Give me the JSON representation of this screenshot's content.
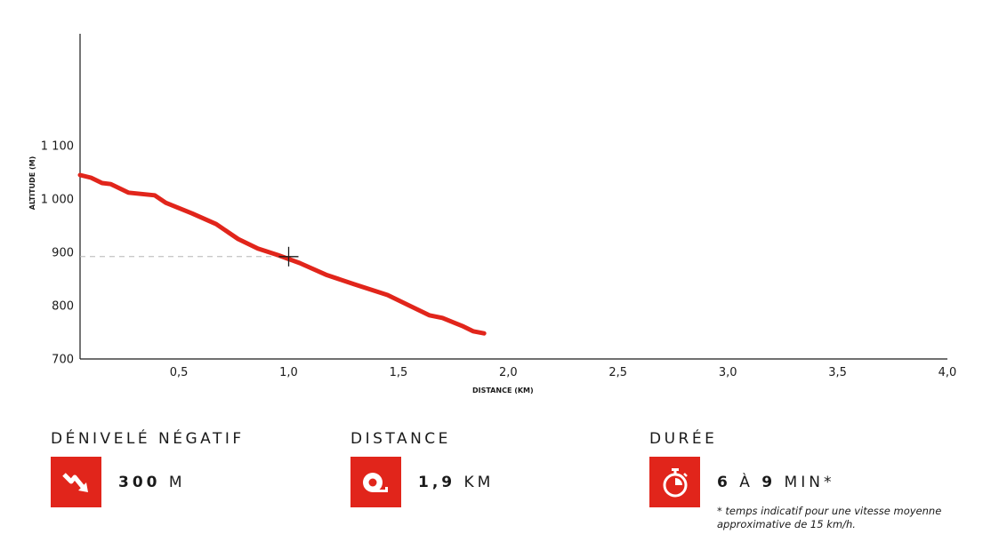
{
  "chart_data": {
    "type": "line",
    "xlabel": "DISTANCE (KM)",
    "ylabel": "ALTITUDE (M)",
    "xlim": [
      0.05,
      4.0
    ],
    "ylim": [
      700,
      1200
    ],
    "x_ticks": [
      0.5,
      1.0,
      1.5,
      2.0,
      2.5,
      3.0,
      3.5,
      4.0
    ],
    "x_tick_labels": [
      "0,5",
      "1,0",
      "1,5",
      "2,0",
      "2,5",
      "3,0",
      "3,5",
      "4,0"
    ],
    "y_ticks": [
      700,
      800,
      900,
      1000,
      1100
    ],
    "y_tick_labels": [
      "700",
      "800",
      "900",
      "1 000",
      "1 100"
    ],
    "grid": false,
    "line_color": "#e1251b",
    "marker": {
      "x": 1.0,
      "y": 892
    },
    "x": [
      0.05,
      0.1,
      0.15,
      0.19,
      0.27,
      0.39,
      0.44,
      0.56,
      0.67,
      0.77,
      0.86,
      0.95,
      1.05,
      1.17,
      1.3,
      1.45,
      1.55,
      1.64,
      1.7,
      1.79,
      1.84,
      1.89
    ],
    "y": [
      1045,
      1040,
      1030,
      1028,
      1012,
      1007,
      993,
      973,
      953,
      925,
      907,
      895,
      880,
      858,
      840,
      820,
      800,
      782,
      777,
      762,
      752,
      748
    ]
  },
  "stats": {
    "descent": {
      "title": "DÉNIVELÉ NÉGATIF",
      "value": "300",
      "unit": "M",
      "icon": "descent-arrow-icon"
    },
    "distance": {
      "title": "DISTANCE",
      "value": "1,9",
      "unit": "KM",
      "icon": "measuring-tape-icon"
    },
    "duration": {
      "title": "DURÉE",
      "value_from": "6",
      "value_sep": "À",
      "value_to": "9",
      "unit": "MIN*",
      "icon": "stopwatch-icon",
      "note": "* temps indicatif pour une vitesse moyenne approximative de 15 km/h."
    }
  }
}
